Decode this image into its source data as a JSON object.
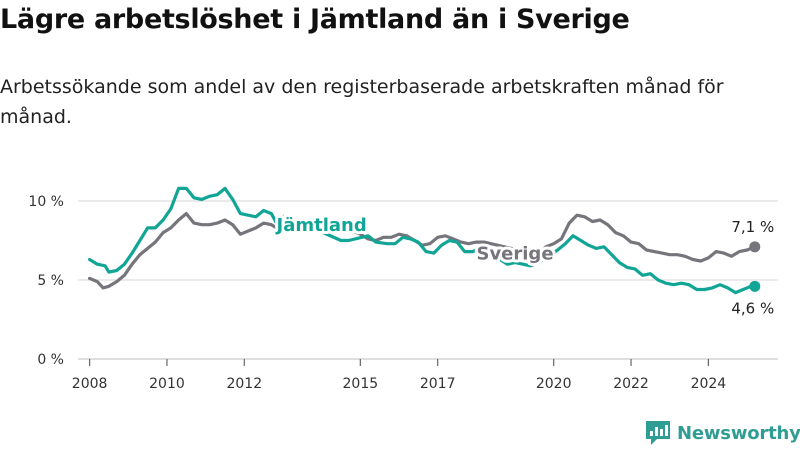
{
  "title": "Lägre arbetslöshet i Jämtland än i Sverige",
  "subtitle": "Arbetssökande som andel av den registerbaserade arbetskraften månad för månad.",
  "brand": "Newsworthy",
  "colors": {
    "jamtland": "#11a596",
    "sverige": "#76757b",
    "grid": "#d6d6d6",
    "brand": "#2f9d94"
  },
  "chart_data": {
    "type": "line",
    "title": "Lägre arbetslöshet i Jämtland än i Sverige",
    "xlabel": "",
    "ylabel": "",
    "xlim": [
      2007.7,
      2025.8
    ],
    "ylim": [
      0,
      10
    ],
    "x_ticks": [
      2008,
      2010,
      2012,
      2015,
      2017,
      2020,
      2022,
      2024
    ],
    "x_tick_labels": [
      "2008",
      "2010",
      "2012",
      "2015",
      "2017",
      "2020",
      "2022",
      "2024"
    ],
    "y_ticks": [
      0,
      5,
      10
    ],
    "y_tick_labels": [
      "0 %",
      "5 %",
      "10 %"
    ],
    "grid": "horizontal",
    "series": [
      {
        "name": "Jämtland",
        "end_label": "4,6 %",
        "points": [
          [
            2008.0,
            6.3
          ],
          [
            2008.2,
            6.0
          ],
          [
            2008.4,
            5.9
          ],
          [
            2008.5,
            5.5
          ],
          [
            2008.7,
            5.6
          ],
          [
            2008.9,
            6.0
          ],
          [
            2009.1,
            6.7
          ],
          [
            2009.3,
            7.5
          ],
          [
            2009.5,
            8.3
          ],
          [
            2009.7,
            8.3
          ],
          [
            2009.9,
            8.8
          ],
          [
            2010.1,
            9.5
          ],
          [
            2010.3,
            10.8
          ],
          [
            2010.5,
            10.8
          ],
          [
            2010.7,
            10.2
          ],
          [
            2010.9,
            10.1
          ],
          [
            2011.1,
            10.3
          ],
          [
            2011.3,
            10.4
          ],
          [
            2011.5,
            10.8
          ],
          [
            2011.7,
            10.1
          ],
          [
            2011.9,
            9.2
          ],
          [
            2012.1,
            9.1
          ],
          [
            2012.3,
            9.0
          ],
          [
            2012.5,
            9.4
          ],
          [
            2012.7,
            9.2
          ],
          [
            2012.9,
            8.3
          ],
          [
            2013.0,
            9.0
          ],
          [
            2013.3,
            8.8
          ],
          [
            2014.5,
            7.5
          ],
          [
            2014.7,
            7.5
          ],
          [
            2015.2,
            7.8
          ],
          [
            2015.4,
            7.4
          ],
          [
            2015.7,
            7.3
          ],
          [
            2015.9,
            7.3
          ],
          [
            2016.1,
            7.7
          ],
          [
            2016.3,
            7.6
          ],
          [
            2016.5,
            7.4
          ],
          [
            2016.7,
            6.8
          ],
          [
            2016.9,
            6.7
          ],
          [
            2017.1,
            7.2
          ],
          [
            2017.3,
            7.5
          ],
          [
            2017.5,
            7.4
          ],
          [
            2017.7,
            6.8
          ],
          [
            2017.9,
            6.8
          ],
          [
            2018.1,
            7.0
          ],
          [
            2018.3,
            6.8
          ],
          [
            2018.8,
            6.0
          ],
          [
            2019.0,
            6.1
          ],
          [
            2019.2,
            6.0
          ],
          [
            2019.4,
            5.9
          ],
          [
            2019.6,
            6.1
          ],
          [
            2019.8,
            6.4
          ],
          [
            2020.1,
            6.9
          ],
          [
            2020.3,
            7.3
          ],
          [
            2020.5,
            7.8
          ],
          [
            2020.7,
            7.5
          ],
          [
            2020.9,
            7.2
          ],
          [
            2021.1,
            7.0
          ],
          [
            2021.3,
            7.1
          ],
          [
            2021.5,
            6.6
          ],
          [
            2021.7,
            6.1
          ],
          [
            2021.9,
            5.8
          ],
          [
            2022.1,
            5.7
          ],
          [
            2022.3,
            5.3
          ],
          [
            2022.5,
            5.4
          ],
          [
            2022.7,
            5.0
          ],
          [
            2022.9,
            4.8
          ],
          [
            2023.1,
            4.7
          ],
          [
            2023.3,
            4.8
          ],
          [
            2023.5,
            4.7
          ],
          [
            2023.7,
            4.4
          ],
          [
            2023.9,
            4.4
          ],
          [
            2024.1,
            4.5
          ],
          [
            2024.3,
            4.7
          ],
          [
            2024.5,
            4.5
          ],
          [
            2024.7,
            4.2
          ],
          [
            2024.9,
            4.4
          ],
          [
            2025.1,
            4.6
          ],
          [
            2025.2,
            4.6
          ]
        ]
      },
      {
        "name": "Sverige",
        "end_label": "7,1 %",
        "points": [
          [
            2008.0,
            5.1
          ],
          [
            2008.2,
            4.9
          ],
          [
            2008.35,
            4.5
          ],
          [
            2008.5,
            4.6
          ],
          [
            2008.7,
            4.9
          ],
          [
            2008.9,
            5.3
          ],
          [
            2009.1,
            6.0
          ],
          [
            2009.3,
            6.6
          ],
          [
            2009.5,
            7.0
          ],
          [
            2009.7,
            7.4
          ],
          [
            2009.9,
            8.0
          ],
          [
            2010.1,
            8.3
          ],
          [
            2010.3,
            8.8
          ],
          [
            2010.5,
            9.2
          ],
          [
            2010.7,
            8.6
          ],
          [
            2010.9,
            8.5
          ],
          [
            2011.1,
            8.5
          ],
          [
            2011.3,
            8.6
          ],
          [
            2011.5,
            8.8
          ],
          [
            2011.7,
            8.5
          ],
          [
            2011.9,
            7.9
          ],
          [
            2012.1,
            8.1
          ],
          [
            2012.3,
            8.3
          ],
          [
            2012.5,
            8.6
          ],
          [
            2012.7,
            8.5
          ],
          [
            2012.9,
            8.2
          ],
          [
            2014.8,
            8.1
          ],
          [
            2015.0,
            7.9
          ],
          [
            2015.2,
            7.6
          ],
          [
            2015.4,
            7.5
          ],
          [
            2015.6,
            7.7
          ],
          [
            2015.8,
            7.7
          ],
          [
            2016.0,
            7.9
          ],
          [
            2016.2,
            7.8
          ],
          [
            2016.4,
            7.5
          ],
          [
            2016.6,
            7.2
          ],
          [
            2016.8,
            7.3
          ],
          [
            2017.0,
            7.7
          ],
          [
            2017.2,
            7.8
          ],
          [
            2017.4,
            7.6
          ],
          [
            2017.6,
            7.4
          ],
          [
            2017.8,
            7.3
          ],
          [
            2018.0,
            7.4
          ],
          [
            2018.2,
            7.4
          ],
          [
            2019.6,
            6.6
          ],
          [
            2019.8,
            7.1
          ],
          [
            2020.0,
            7.3
          ],
          [
            2020.2,
            7.6
          ],
          [
            2020.4,
            8.6
          ],
          [
            2020.6,
            9.1
          ],
          [
            2020.8,
            9.0
          ],
          [
            2021.0,
            8.7
          ],
          [
            2021.2,
            8.8
          ],
          [
            2021.4,
            8.5
          ],
          [
            2021.6,
            8.0
          ],
          [
            2021.8,
            7.8
          ],
          [
            2022.0,
            7.4
          ],
          [
            2022.2,
            7.3
          ],
          [
            2022.4,
            6.9
          ],
          [
            2022.6,
            6.8
          ],
          [
            2022.8,
            6.7
          ],
          [
            2023.0,
            6.6
          ],
          [
            2023.2,
            6.6
          ],
          [
            2023.4,
            6.5
          ],
          [
            2023.6,
            6.3
          ],
          [
            2023.8,
            6.2
          ],
          [
            2024.0,
            6.4
          ],
          [
            2024.2,
            6.8
          ],
          [
            2024.4,
            6.7
          ],
          [
            2024.6,
            6.5
          ],
          [
            2024.8,
            6.8
          ],
          [
            2025.0,
            6.9
          ],
          [
            2025.2,
            7.1
          ]
        ]
      }
    ],
    "inline_labels": [
      "Jämtland",
      "Sverige"
    ]
  }
}
